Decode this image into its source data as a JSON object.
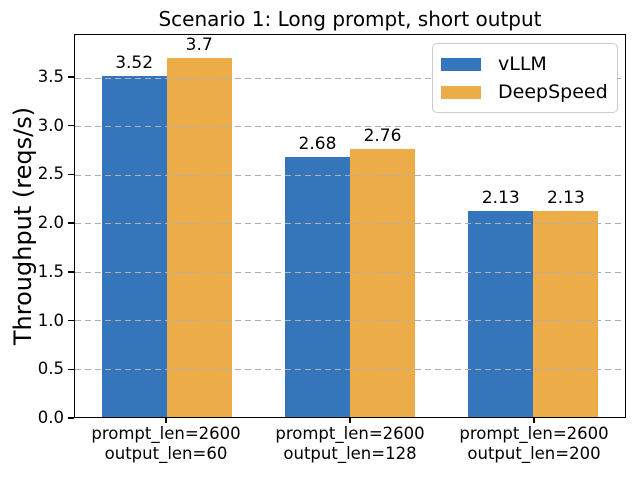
{
  "chart_data": {
    "type": "bar",
    "title": "Scenario 1: Long prompt, short output",
    "ylabel": "Throughput (reqs/s)",
    "xlabel": "",
    "categories": [
      {
        "line1": "prompt_len=2600",
        "line2": "output_len=60"
      },
      {
        "line1": "prompt_len=2600",
        "line2": "output_len=128"
      },
      {
        "line1": "prompt_len=2600",
        "line2": "output_len=200"
      }
    ],
    "series": [
      {
        "name": "vLLM",
        "color": "#3475bc",
        "values": [
          3.52,
          2.68,
          2.13
        ],
        "labels": [
          "3.52",
          "2.68",
          "2.13"
        ]
      },
      {
        "name": "DeepSpeed",
        "color": "#ecad49",
        "values": [
          3.7,
          2.76,
          2.13
        ],
        "labels": [
          "3.7",
          "2.76",
          "2.13"
        ]
      }
    ],
    "yticks": [
      "0.0",
      "0.5",
      "1.0",
      "1.5",
      "2.0",
      "2.5",
      "3.0",
      "3.5"
    ],
    "ylim": [
      0,
      3.94
    ],
    "grid": {
      "axis": "y",
      "linestyle": "dashed",
      "color": "#b0b0b0",
      "drawn_above_bars": true
    },
    "legend": {
      "position": "upper right"
    },
    "bar_width_fraction_of_plot": 0.1183
  }
}
